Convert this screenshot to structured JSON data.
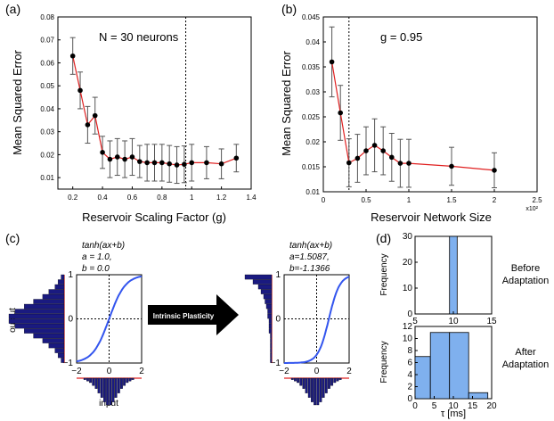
{
  "chart_data": [
    {
      "id": "a",
      "type": "line",
      "panel_label": "(a)",
      "annotation": "N = 30 neurons",
      "xlabel": "Reservoir Scaling Factor (g)",
      "ylabel": "Mean Squared Error",
      "xlim": [
        0.1,
        1.4
      ],
      "ylim": [
        0.005,
        0.08
      ],
      "xticks": [
        0.2,
        0.4,
        0.6,
        0.8,
        1,
        1.2,
        1.4
      ],
      "xtick_labels": [
        "0.2",
        "0.4",
        "0.6",
        "0.8",
        "1",
        "1.2",
        "1.4"
      ],
      "yticks": [
        0.01,
        0.02,
        0.03,
        0.04,
        0.05,
        0.06,
        0.07,
        0.08
      ],
      "ytick_labels": [
        "0.01",
        "0.02",
        "0.03",
        "0.04",
        "0.05",
        "0.06",
        "0.07",
        "0.08"
      ],
      "vline": 0.96,
      "x": [
        0.2,
        0.25,
        0.3,
        0.35,
        0.4,
        0.45,
        0.5,
        0.55,
        0.6,
        0.65,
        0.7,
        0.75,
        0.8,
        0.85,
        0.9,
        0.95,
        1.0,
        1.1,
        1.2,
        1.3
      ],
      "y": [
        0.063,
        0.048,
        0.033,
        0.037,
        0.021,
        0.018,
        0.019,
        0.018,
        0.019,
        0.017,
        0.0165,
        0.0165,
        0.0165,
        0.016,
        0.0155,
        0.0158,
        0.0165,
        0.0165,
        0.016,
        0.0185
      ],
      "err": [
        0.008,
        0.008,
        0.008,
        0.008,
        0.007,
        0.008,
        0.008,
        0.008,
        0.008,
        0.007,
        0.008,
        0.008,
        0.008,
        0.008,
        0.008,
        0.008,
        0.008,
        0.007,
        0.0065,
        0.006
      ]
    },
    {
      "id": "b",
      "type": "line",
      "panel_label": "(b)",
      "annotation": "g = 0.95",
      "xlabel": "Reservoir Network Size",
      "ylabel": "Mean Squared Error",
      "exponent_label": "x10²",
      "xlim": [
        0,
        2.5
      ],
      "ylim": [
        0.01,
        0.045
      ],
      "xticks": [
        0,
        0.5,
        1,
        1.5,
        2,
        2.5
      ],
      "xtick_labels": [
        "0",
        "0.5",
        "1",
        "1.5",
        "2",
        "2.5"
      ],
      "yticks": [
        0.01,
        0.015,
        0.02,
        0.025,
        0.03,
        0.035,
        0.04,
        0.045
      ],
      "ytick_labels": [
        "0.01",
        "0.015",
        "0.02",
        "0.025",
        "0.03",
        "0.035",
        "0.04",
        "0.045"
      ],
      "vline": 0.3,
      "x": [
        0.1,
        0.2,
        0.3,
        0.4,
        0.5,
        0.6,
        0.7,
        0.8,
        0.9,
        1.0,
        1.5,
        2.0
      ],
      "y": [
        0.036,
        0.0258,
        0.0158,
        0.0167,
        0.0182,
        0.0193,
        0.0182,
        0.0169,
        0.0157,
        0.0157,
        0.0151,
        0.0143
      ],
      "err": [
        0.007,
        0.0055,
        0.0048,
        0.0048,
        0.0048,
        0.0053,
        0.0048,
        0.0048,
        0.0048,
        0.0048,
        0.0038,
        0.0035
      ]
    },
    {
      "id": "c",
      "type": "line",
      "panel_label": "(c)",
      "arrow_label": "Intrinsic Plasticity",
      "input_label": "input",
      "output_label": "output",
      "input_histogram": [
        1,
        2,
        3,
        5,
        7,
        10,
        13,
        16,
        18,
        18,
        16,
        13,
        10,
        7,
        5,
        3,
        2,
        1
      ],
      "output_hist_before": [
        1,
        2,
        3,
        5,
        7,
        10,
        13,
        16,
        18,
        18,
        16,
        13,
        10,
        7,
        5,
        3,
        2,
        1
      ],
      "output_hist_after": [
        1,
        1,
        1,
        1,
        1,
        1,
        2,
        2,
        2,
        3,
        3,
        4,
        5,
        6,
        8,
        10,
        14,
        20
      ],
      "subplots": [
        {
          "formula": "tanh(ax+b)",
          "a_label": "a = 1.0,",
          "b_label": "b = 0.0",
          "a": 1.0,
          "b": 0.0,
          "xlim": [
            -2,
            2
          ],
          "ylim": [
            -1,
            1
          ],
          "xtick_labels": [
            "−2",
            "0",
            "2"
          ],
          "ytick_labels": [
            "−1",
            "0",
            "1"
          ]
        },
        {
          "formula": "tanh(ax+b)",
          "a_label": "a=1.5087,",
          "b_label": "b=-1.1366",
          "a": 1.5087,
          "b": -1.1366,
          "xlim": [
            -2,
            2
          ],
          "ylim": [
            -1,
            1
          ],
          "xtick_labels": [
            "−2",
            "0",
            "2"
          ],
          "ytick_labels": [
            "−1",
            "0",
            "1"
          ]
        }
      ]
    },
    {
      "id": "d",
      "type": "bar",
      "panel_label": "(d)",
      "xlabel": "τ [ms]",
      "subplots": [
        {
          "title": "Before",
          "title2": "Adaptation",
          "ylabel": "Frequency",
          "xlim": [
            5,
            15
          ],
          "ylim": [
            0,
            30
          ],
          "xticks": [
            5,
            10,
            15
          ],
          "xtick_labels": [
            "5",
            "10",
            "15"
          ],
          "yticks": [
            0,
            10,
            20,
            30
          ],
          "ytick_labels": [
            "0",
            "10",
            "20",
            "30"
          ],
          "bins": [
            [
              9.5,
              10.5
            ]
          ],
          "values": [
            30
          ]
        },
        {
          "title": "After",
          "title2": "Adaptation",
          "ylabel": "Frequency",
          "xlim": [
            0,
            20
          ],
          "ylim": [
            0,
            12
          ],
          "xticks": [
            0,
            5,
            10,
            15,
            20
          ],
          "xtick_labels": [
            "0",
            "5",
            "10",
            "15",
            "20"
          ],
          "yticks": [
            0,
            2,
            4,
            6,
            8,
            10,
            12
          ],
          "ytick_labels": [
            "0",
            "2",
            "4",
            "6",
            "8",
            "10",
            "12"
          ],
          "bins": [
            [
              0,
              4
            ],
            [
              4,
              9
            ],
            [
              9,
              14
            ],
            [
              14,
              19
            ]
          ],
          "values": [
            7,
            11,
            11,
            1
          ]
        }
      ]
    }
  ]
}
